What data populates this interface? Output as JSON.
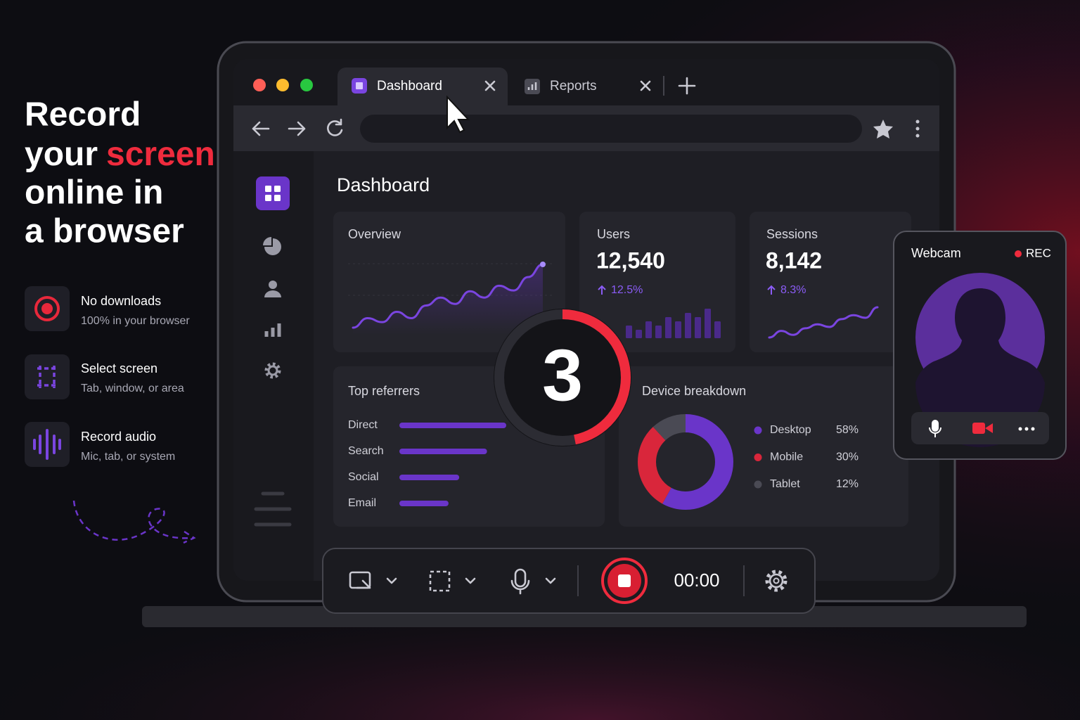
{
  "hero": {
    "line1": "Record",
    "line2a": "your",
    "line2b": "screen",
    "line3": "online in",
    "line4": "a browser"
  },
  "features": [
    {
      "title": "No downloads",
      "subtitle": "100% in your browser"
    },
    {
      "title": "Select screen",
      "subtitle": "Tab, window, or area"
    },
    {
      "title": "Record audio",
      "subtitle": "Mic, tab, or system"
    }
  ],
  "browser": {
    "tabs": [
      "Dashboard",
      "Reports"
    ]
  },
  "dashboard": {
    "title": "Dashboard",
    "overview": {
      "title": "Overview",
      "values": [
        10,
        22,
        17,
        30,
        22,
        38,
        48,
        40,
        56,
        48,
        63,
        57,
        74,
        90
      ]
    },
    "users": {
      "label": "Users",
      "value": "12,540",
      "change": "12.5%",
      "bars": [
        3,
        2,
        4,
        3,
        5,
        4,
        6,
        5,
        7,
        4
      ]
    },
    "sessions": {
      "label": "Sessions",
      "value": "8,142",
      "change": "8.3%",
      "values": [
        10,
        20,
        14,
        24,
        30,
        26,
        38,
        44,
        40,
        56
      ]
    },
    "referrers": {
      "title": "Top referrers",
      "rows": [
        {
          "name": "Direct",
          "value": 100
        },
        {
          "name": "Search",
          "value": 82
        },
        {
          "name": "Social",
          "value": 56
        },
        {
          "name": "Email",
          "value": 46
        }
      ]
    },
    "devices": {
      "title": "Device breakdown",
      "items": [
        {
          "name": "Desktop",
          "value": 58,
          "label": "58%",
          "color": "#6a35c9"
        },
        {
          "name": "Mobile",
          "value": 30,
          "label": "30%",
          "color": "#d9263b"
        },
        {
          "name": "Tablet",
          "value": 12,
          "label": "12%",
          "color": "#4a4a54"
        }
      ]
    }
  },
  "countdown": "3",
  "webcam": {
    "title": "Webcam",
    "status": "REC"
  },
  "recorder": {
    "timer": "00:00"
  }
}
